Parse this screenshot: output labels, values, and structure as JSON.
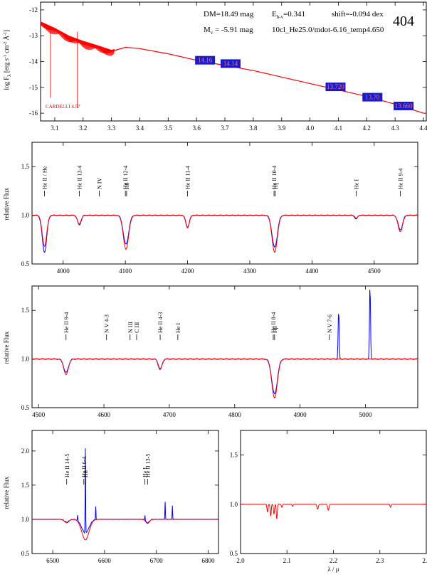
{
  "header": {
    "dm": "DM=18.49 mag",
    "ebv": "E",
    "ebv_sub": "b-v",
    "ebv_val": "=0.341",
    "shift": "shift=-0.094 dex",
    "mv": "M",
    "mv_sub": "v",
    "mv_val": " = -5.91 mag",
    "model": "10cl_He25.0/mdot-6.16_temp4.650",
    "id": "404"
  },
  "colors": {
    "model": "#ff0000",
    "observed": "#0000ff",
    "mag_box": "#1a1acc",
    "mag_text": "#ff7070"
  },
  "chart_data": [
    {
      "type": "line",
      "panel": "sed",
      "ylabel": "log F",
      "ylabel_sub": "λ",
      "ylabel_unit": "[erg s",
      "ylabel_unit2": "cm",
      "ylabel_unit3": "Å",
      "ylabel_unit4": "]",
      "xlim": [
        3.05,
        4.41
      ],
      "ylim": [
        -16.3,
        -11.7
      ],
      "xticks": [
        3.1,
        3.2,
        3.3,
        3.4,
        3.5,
        3.6,
        3.7,
        3.8,
        3.9,
        4.0,
        4.1,
        4.2,
        4.3,
        4.4
      ],
      "xtick_labels": [
        "3.1",
        "3.2",
        "3.3",
        "3.4",
        "3.5",
        "3.6",
        "3.7",
        "3.8",
        "3.9",
        "4.0",
        "4.1",
        "4.2",
        "4.3",
        "4.4"
      ],
      "yticks": [
        -16,
        -15,
        -14,
        -13,
        -12
      ],
      "ytick_labels": [
        "-16",
        "-15",
        "-14",
        "-13",
        "-12"
      ],
      "sed_model": {
        "x": [
          3.05,
          3.1,
          3.15,
          3.2,
          3.25,
          3.3,
          3.35,
          3.4,
          3.5,
          3.6,
          3.7,
          3.8,
          3.9,
          4.0,
          4.1,
          4.2,
          4.3,
          4.4
        ],
        "y": [
          -12.5,
          -12.75,
          -13.05,
          -13.25,
          -13.42,
          -13.6,
          -13.45,
          -13.5,
          -13.7,
          -13.95,
          -14.15,
          -14.35,
          -14.6,
          -14.85,
          -15.1,
          -15.35,
          -15.65,
          -16.0
        ]
      },
      "photometry": [
        {
          "x": 3.63,
          "y": -13.95,
          "label": "14.16"
        },
        {
          "x": 3.72,
          "y": -14.08,
          "label": "14.14"
        },
        {
          "x": 4.09,
          "y": -14.98,
          "label": "13.720"
        },
        {
          "x": 4.22,
          "y": -15.38,
          "label": "13.70"
        },
        {
          "x": 4.33,
          "y": -15.72,
          "label": "13.660"
        }
      ],
      "annotation": "CARDELLI 4.57"
    },
    {
      "type": "line",
      "panel": "blue",
      "ylabel": "relative Flux",
      "xlim": [
        3950,
        4570
      ],
      "ylim": [
        0.5,
        1.75
      ],
      "xticks": [
        4000,
        4100,
        4200,
        4300,
        4400,
        4500
      ],
      "xtick_labels": [
        "4000",
        "4100",
        "4200",
        "4300",
        "4400",
        "4500"
      ],
      "yticks": [
        0.5,
        1.0,
        1.5
      ],
      "ytick_labels": [
        "0.5",
        "1.0",
        "1.5"
      ],
      "lines": [
        {
          "x": 3970,
          "label": "He II / He"
        },
        {
          "x": 4026,
          "label": "He II 13-4"
        },
        {
          "x": 4058,
          "label": "N IV"
        },
        {
          "x": 4100,
          "label": "He II 12-4"
        },
        {
          "x": 4102,
          "label": "Hδ"
        },
        {
          "x": 4200,
          "label": "He II 11-4"
        },
        {
          "x": 4339,
          "label": "He II 10-4"
        },
        {
          "x": 4341,
          "label": "Hγ"
        },
        {
          "x": 4471,
          "label": "He I"
        },
        {
          "x": 4542,
          "label": "He II 9-4"
        }
      ],
      "absorptions": [
        {
          "x": 3970,
          "d_model": 0.32,
          "d_obs": 0.38,
          "w": 5
        },
        {
          "x": 4026,
          "d_model": 0.09,
          "d_obs": 0.1,
          "w": 4
        },
        {
          "x": 4101,
          "d_model": 0.35,
          "d_obs": 0.3,
          "w": 6
        },
        {
          "x": 4200,
          "d_model": 0.13,
          "d_obs": 0.12,
          "w": 4
        },
        {
          "x": 4340,
          "d_model": 0.38,
          "d_obs": 0.33,
          "w": 6
        },
        {
          "x": 4471,
          "d_model": 0.03,
          "d_obs": 0.04,
          "w": 3
        },
        {
          "x": 4542,
          "d_model": 0.17,
          "d_obs": 0.15,
          "w": 5
        }
      ]
    },
    {
      "type": "line",
      "panel": "green",
      "ylabel": "relative Flux",
      "xlim": [
        4490,
        5080
      ],
      "ylim": [
        0.5,
        1.75
      ],
      "xticks": [
        4500,
        4600,
        4700,
        4800,
        4900,
        5000
      ],
      "xtick_labels": [
        "4500",
        "4600",
        "4700",
        "4800",
        "4900",
        "5000"
      ],
      "yticks": [
        0.5,
        1.0,
        1.5
      ],
      "ytick_labels": [
        "0.5",
        "1.0",
        "1.5"
      ],
      "lines": [
        {
          "x": 4542,
          "label": "He II 9-4"
        },
        {
          "x": 4604,
          "label": "N V 4-3"
        },
        {
          "x": 4640,
          "label": "N III"
        },
        {
          "x": 4650,
          "label": "C III"
        },
        {
          "x": 4686,
          "label": "He II 4-3"
        },
        {
          "x": 4713,
          "label": "He I"
        },
        {
          "x": 4859,
          "label": "He II 8-4"
        },
        {
          "x": 4861,
          "label": "Hβ"
        },
        {
          "x": 4945,
          "label": "N V 7-6"
        }
      ],
      "absorptions": [
        {
          "x": 4542,
          "d_model": 0.16,
          "d_obs": 0.14,
          "w": 5
        },
        {
          "x": 4686,
          "d_model": 0.1,
          "d_obs": 0.11,
          "w": 4
        },
        {
          "x": 4861,
          "d_model": 0.4,
          "d_obs": 0.36,
          "w": 6
        }
      ],
      "emissions": [
        {
          "x": 4959,
          "h": 0.52
        },
        {
          "x": 5007,
          "h": 0.78
        }
      ]
    },
    {
      "type": "line",
      "panel": "red",
      "ylabel": "relative Flux",
      "xlim": [
        6460,
        6820
      ],
      "ylim": [
        0.5,
        2.3
      ],
      "xticks": [
        6500,
        6600,
        6700,
        6800
      ],
      "xtick_labels": [
        "6500",
        "6600",
        "6700",
        "6800"
      ],
      "yticks": [
        0.5,
        1.0,
        1.5,
        2.0
      ],
      "ytick_labels": [
        "0.5",
        "1.0",
        "1.5",
        "2.0"
      ],
      "lines": [
        {
          "x": 6527,
          "label": "He II 14-5"
        },
        {
          "x": 6560,
          "label": "He II 6-4"
        },
        {
          "x": 6563,
          "label": "Hα"
        },
        {
          "x": 6678,
          "label": "He I"
        },
        {
          "x": 6683,
          "label": "He II 13-5"
        }
      ],
      "absorptions": [
        {
          "x": 6527,
          "d_model": 0.05,
          "d_obs": 0.04,
          "w": 6
        },
        {
          "x": 6563,
          "d_model": 0.3,
          "d_obs": 0.2,
          "w": 10
        },
        {
          "x": 6683,
          "d_model": 0.06,
          "d_obs": 0.05,
          "w": 5
        }
      ],
      "emissions": [
        {
          "x": 6548,
          "h": 0.08
        },
        {
          "x": 6563,
          "h": 1.3
        },
        {
          "x": 6583,
          "h": 0.2
        },
        {
          "x": 6678,
          "h": 0.08
        },
        {
          "x": 6717,
          "h": 0.27
        },
        {
          "x": 6731,
          "h": 0.2
        }
      ]
    },
    {
      "type": "line",
      "panel": "ir",
      "xlabel": "λ / μ",
      "xlim": [
        2.0,
        2.4
      ],
      "ylim": [
        0.5,
        1.75
      ],
      "xticks": [
        2.0,
        2.1,
        2.2,
        2.3,
        2.4
      ],
      "xtick_labels": [
        "2.0",
        "2.1",
        "2.2",
        "2.3",
        "2.4"
      ],
      "yticks": [
        0.5,
        1.0,
        1.5
      ],
      "ytick_labels": [
        "0.5",
        "1.0",
        "1.5"
      ],
      "absorptions": [
        {
          "x": 2.058,
          "d_model": 0.08,
          "d_obs": 0,
          "w": 0.0015
        },
        {
          "x": 2.065,
          "d_model": 0.12,
          "d_obs": 0,
          "w": 0.0015
        },
        {
          "x": 2.072,
          "d_model": 0.1,
          "d_obs": 0,
          "w": 0.0015
        },
        {
          "x": 2.078,
          "d_model": 0.15,
          "d_obs": 0,
          "w": 0.0015
        },
        {
          "x": 2.089,
          "d_model": 0.03,
          "d_obs": 0,
          "w": 0.0015
        },
        {
          "x": 2.112,
          "d_model": 0.02,
          "d_obs": 0,
          "w": 0.0015
        },
        {
          "x": 2.166,
          "d_model": 0.05,
          "d_obs": 0,
          "w": 0.002
        },
        {
          "x": 2.189,
          "d_model": 0.06,
          "d_obs": 0,
          "w": 0.002
        },
        {
          "x": 2.323,
          "d_model": 0.03,
          "d_obs": 0,
          "w": 0.0015
        }
      ]
    }
  ]
}
